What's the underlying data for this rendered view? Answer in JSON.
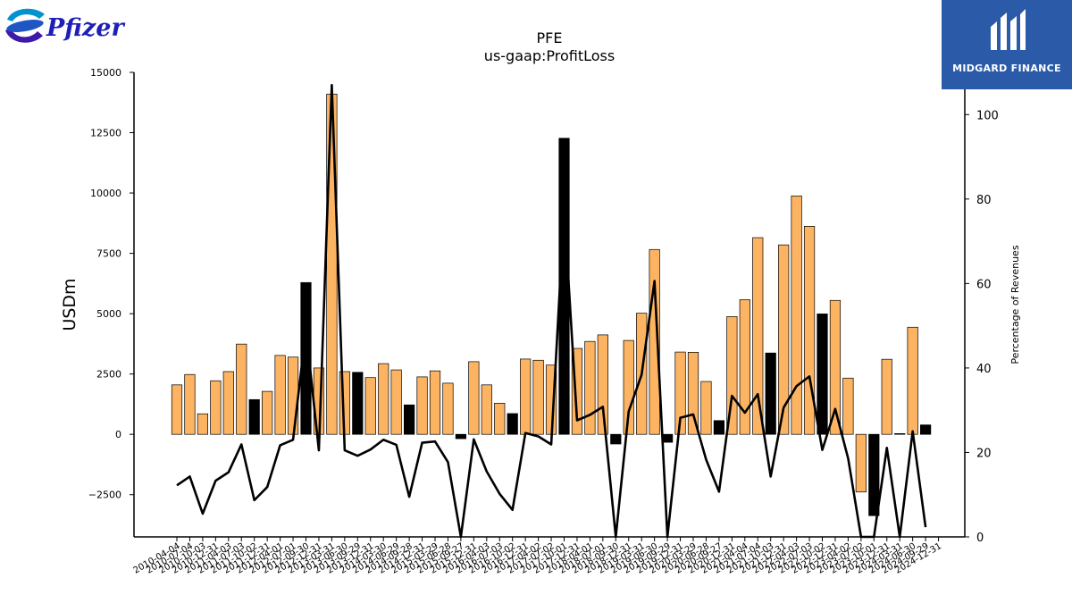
{
  "logos": {
    "left_brand": "Pfizer",
    "right_brand": "MIDGARD FINANCE"
  },
  "colors": {
    "bar_positive": "#fdb462",
    "bar_highlight": "#000000",
    "line": "#000000"
  },
  "chart_data": {
    "type": "bar",
    "title": "PFE",
    "subtitle": "us-gaap:ProfitLoss",
    "ylabel": "USDm",
    "y2label": "Percentage of Revenues",
    "ylim": [
      -4250,
      15000
    ],
    "y2lim": [
      0,
      110
    ],
    "yticks": [
      -2500,
      0,
      2500,
      5000,
      7500,
      10000,
      12500,
      15000
    ],
    "y2ticks": [
      0,
      20,
      40,
      60,
      80,
      100
    ],
    "grid": false,
    "categories": [
      "2010-04-04",
      "2010-07-04",
      "2010-10-03",
      "2010-12-31",
      "2011-04-03",
      "2011-07-03",
      "2011-10-02",
      "2011-12-31",
      "2012-04-01",
      "2012-07-01",
      "2012-09-30",
      "2012-12-31",
      "2013-03-31",
      "2013-06-30",
      "2013-09-29",
      "2013-12-31",
      "2014-03-30",
      "2014-06-29",
      "2014-09-28",
      "2014-12-31",
      "2015-03-29",
      "2015-06-28",
      "2015-09-27",
      "2015-12-31",
      "2016-04-03",
      "2016-07-03",
      "2016-10-02",
      "2016-12-31",
      "2017-04-02",
      "2017-07-02",
      "2017-10-01",
      "2017-12-31",
      "2018-04-01",
      "2018-07-01",
      "2018-09-30",
      "2018-12-31",
      "2019-03-31",
      "2019-06-30",
      "2019-09-29",
      "2019-12-31",
      "2020-03-29",
      "2020-06-28",
      "2020-09-27",
      "2020-12-31",
      "2021-04-04",
      "2021-07-04",
      "2021-10-03",
      "2021-12-31",
      "2022-04-03",
      "2022-07-03",
      "2022-10-02",
      "2022-12-31",
      "2023-04-02",
      "2023-07-02",
      "2023-10-01",
      "2023-12-31",
      "2024-03-31",
      "2024-06-30",
      "2024-09-29",
      "2024-12-31"
    ],
    "series": [
      {
        "type": "bar",
        "values": [
          2050,
          2480,
          850,
          2220,
          2600,
          3740,
          1440,
          1780,
          3270,
          3200,
          6290,
          2750,
          14100,
          2600,
          2570,
          2350,
          2930,
          2670,
          1220,
          2380,
          2630,
          2120,
          -180,
          3010,
          2050,
          1290,
          860,
          3120,
          3070,
          2870,
          12270,
          3560,
          3850,
          4120,
          -400,
          3890,
          5020,
          7660,
          -330,
          3410,
          3400,
          2190,
          570,
          4880,
          5580,
          8150,
          3370,
          7850,
          9880,
          8620,
          4990,
          5550,
          2330,
          -2390,
          -3370,
          3110,
          30,
          4440,
          390,
          null
        ],
        "highlight": [
          false,
          false,
          false,
          false,
          false,
          false,
          true,
          false,
          false,
          false,
          true,
          false,
          false,
          false,
          true,
          false,
          false,
          false,
          true,
          false,
          false,
          false,
          true,
          false,
          false,
          false,
          true,
          false,
          false,
          false,
          true,
          false,
          false,
          false,
          true,
          false,
          false,
          false,
          true,
          false,
          false,
          false,
          true,
          false,
          false,
          false,
          true,
          false,
          false,
          false,
          true,
          false,
          false,
          false,
          true,
          false,
          true,
          false,
          true,
          false
        ]
      },
      {
        "type": "line",
        "axis": "right",
        "values": [
          12.2,
          14.3,
          5.5,
          13.3,
          15.3,
          21.9,
          8.7,
          11.8,
          21.7,
          23.0,
          49.0,
          20.5,
          107.0,
          20.5,
          19.2,
          20.7,
          23.0,
          21.8,
          9.5,
          22.3,
          22.6,
          17.7,
          0.0,
          23.1,
          15.5,
          10.2,
          6.4,
          24.6,
          23.8,
          21.9,
          77.5,
          27.6,
          28.9,
          30.8,
          0.0,
          29.7,
          38.4,
          60.6,
          0.0,
          28.2,
          29.0,
          18.3,
          10.7,
          33.4,
          29.4,
          33.8,
          14.3,
          30.6,
          35.7,
          38.0,
          20.6,
          30.3,
          18.6,
          0.0,
          0.0,
          21.1,
          0.0,
          25.0,
          2.3,
          null
        ]
      }
    ]
  }
}
